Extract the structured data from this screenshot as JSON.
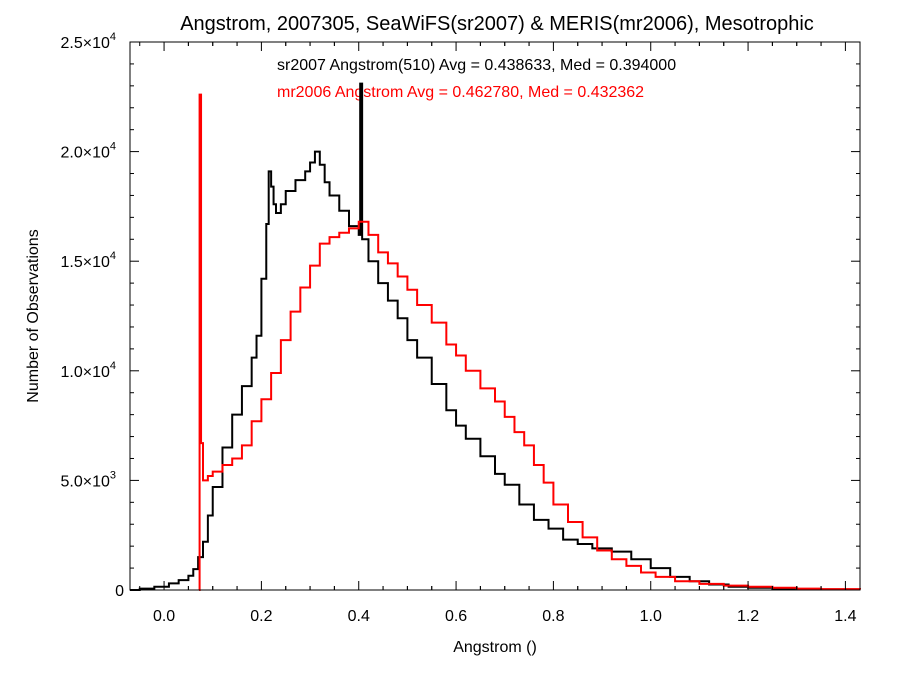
{
  "chart_data": {
    "type": "line",
    "title": "Angstrom, 2007305, SeaWiFS(sr2007) & MERIS(mr2006), Mesotrophic",
    "xlabel": "Angstrom ()",
    "ylabel": "Number of Observations",
    "xlim": [
      -0.07,
      1.43
    ],
    "ylim": [
      0,
      25000
    ],
    "x_ticks": [
      0.0,
      0.2,
      0.4,
      0.6,
      0.8,
      1.0,
      1.2,
      1.4
    ],
    "x_tick_labels": [
      "0.0",
      "0.2",
      "0.4",
      "0.6",
      "0.8",
      "1.0",
      "1.2",
      "1.4"
    ],
    "y_ticks": [
      {
        "value": 0,
        "mantissa": "0",
        "exponent": ""
      },
      {
        "value": 5000,
        "mantissa": "5.0×10",
        "exponent": "3"
      },
      {
        "value": 10000,
        "mantissa": "1.0×10",
        "exponent": "4"
      },
      {
        "value": 15000,
        "mantissa": "1.5×10",
        "exponent": "4"
      },
      {
        "value": 20000,
        "mantissa": "2.0×10",
        "exponent": "4"
      },
      {
        "value": 25000,
        "mantissa": "2.5×10",
        "exponent": "4"
      }
    ],
    "grid": false,
    "step": true,
    "annotations": [
      {
        "text": "sr2007 Angstrom(510) Avg = 0.438633, Med = 0.394000",
        "color": "#000000"
      },
      {
        "text": "mr2006 Angstrom Avg = 0.462780, Med = 0.432362",
        "color": "#ff0000"
      }
    ],
    "series": [
      {
        "name": "sr2007",
        "color": "#000000",
        "points": [
          [
            -0.07,
            0
          ],
          [
            -0.05,
            60
          ],
          [
            -0.02,
            150
          ],
          [
            0.01,
            300
          ],
          [
            0.03,
            450
          ],
          [
            0.05,
            650
          ],
          [
            0.06,
            950
          ],
          [
            0.07,
            1500
          ],
          [
            0.08,
            2200
          ],
          [
            0.09,
            3400
          ],
          [
            0.1,
            4700
          ],
          [
            0.12,
            6500
          ],
          [
            0.14,
            8000
          ],
          [
            0.16,
            9300
          ],
          [
            0.18,
            10600
          ],
          [
            0.19,
            11600
          ],
          [
            0.2,
            14200
          ],
          [
            0.21,
            16700
          ],
          [
            0.215,
            19100
          ],
          [
            0.22,
            18400
          ],
          [
            0.225,
            17600
          ],
          [
            0.23,
            17200
          ],
          [
            0.24,
            17600
          ],
          [
            0.25,
            18200
          ],
          [
            0.27,
            18700
          ],
          [
            0.29,
            19100
          ],
          [
            0.3,
            19500
          ],
          [
            0.31,
            20000
          ],
          [
            0.32,
            19400
          ],
          [
            0.33,
            18600
          ],
          [
            0.34,
            18000
          ],
          [
            0.36,
            17300
          ],
          [
            0.38,
            16600
          ],
          [
            0.4,
            16200
          ],
          [
            0.403,
            23100
          ],
          [
            0.407,
            16000
          ],
          [
            0.42,
            15000
          ],
          [
            0.44,
            14000
          ],
          [
            0.46,
            13200
          ],
          [
            0.48,
            12400
          ],
          [
            0.5,
            11400
          ],
          [
            0.52,
            10600
          ],
          [
            0.55,
            9400
          ],
          [
            0.58,
            8200
          ],
          [
            0.6,
            7500
          ],
          [
            0.62,
            6900
          ],
          [
            0.65,
            6100
          ],
          [
            0.68,
            5300
          ],
          [
            0.7,
            4800
          ],
          [
            0.73,
            3900
          ],
          [
            0.76,
            3200
          ],
          [
            0.79,
            2800
          ],
          [
            0.82,
            2300
          ],
          [
            0.85,
            2100
          ],
          [
            0.88,
            1900
          ],
          [
            0.92,
            1750
          ],
          [
            0.96,
            1400
          ],
          [
            1.0,
            1000
          ],
          [
            1.04,
            600
          ],
          [
            1.08,
            400
          ],
          [
            1.12,
            250
          ],
          [
            1.16,
            150
          ],
          [
            1.2,
            100
          ],
          [
            1.25,
            60
          ],
          [
            1.3,
            40
          ],
          [
            1.35,
            30
          ],
          [
            1.43,
            20
          ]
        ]
      },
      {
        "name": "mr2006",
        "color": "#ff0000",
        "points": [
          [
            0.072,
            0
          ],
          [
            0.073,
            22600
          ],
          [
            0.076,
            6700
          ],
          [
            0.08,
            5000
          ],
          [
            0.09,
            5200
          ],
          [
            0.1,
            5400
          ],
          [
            0.12,
            5700
          ],
          [
            0.14,
            6000
          ],
          [
            0.16,
            6600
          ],
          [
            0.18,
            7700
          ],
          [
            0.2,
            8700
          ],
          [
            0.22,
            9900
          ],
          [
            0.24,
            11400
          ],
          [
            0.26,
            12700
          ],
          [
            0.28,
            13800
          ],
          [
            0.3,
            14800
          ],
          [
            0.32,
            15800
          ],
          [
            0.34,
            16100
          ],
          [
            0.36,
            16300
          ],
          [
            0.38,
            16500
          ],
          [
            0.4,
            16800
          ],
          [
            0.42,
            16200
          ],
          [
            0.44,
            15400
          ],
          [
            0.46,
            14900
          ],
          [
            0.48,
            14300
          ],
          [
            0.5,
            13700
          ],
          [
            0.52,
            13000
          ],
          [
            0.55,
            12200
          ],
          [
            0.58,
            11200
          ],
          [
            0.6,
            10700
          ],
          [
            0.62,
            10000
          ],
          [
            0.65,
            9200
          ],
          [
            0.68,
            8600
          ],
          [
            0.7,
            7900
          ],
          [
            0.72,
            7200
          ],
          [
            0.74,
            6600
          ],
          [
            0.76,
            5700
          ],
          [
            0.78,
            4900
          ],
          [
            0.8,
            3900
          ],
          [
            0.83,
            3100
          ],
          [
            0.86,
            2400
          ],
          [
            0.89,
            1800
          ],
          [
            0.92,
            1400
          ],
          [
            0.95,
            1100
          ],
          [
            0.98,
            800
          ],
          [
            1.01,
            600
          ],
          [
            1.05,
            400
          ],
          [
            1.1,
            280
          ],
          [
            1.15,
            200
          ],
          [
            1.2,
            150
          ],
          [
            1.25,
            100
          ],
          [
            1.3,
            60
          ],
          [
            1.35,
            40
          ],
          [
            1.43,
            20
          ]
        ]
      }
    ]
  }
}
